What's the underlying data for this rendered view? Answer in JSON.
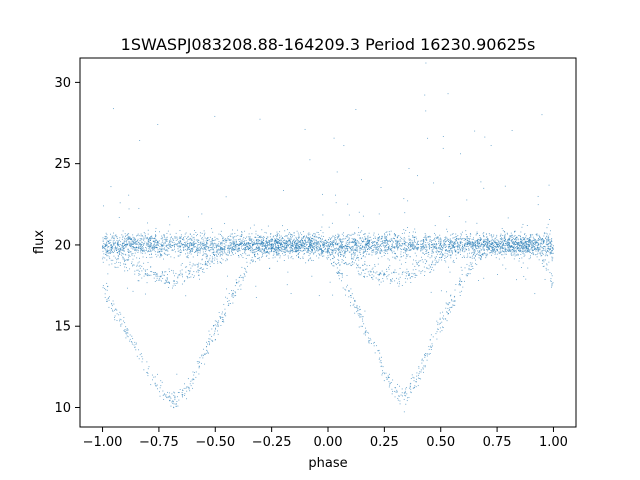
{
  "chart_data": {
    "type": "scatter",
    "title": "1SWASPJ083208.88-164209.3 Period 16230.90625s",
    "xlabel": "phase",
    "ylabel": "flux",
    "xlim": [
      -1.1,
      1.1
    ],
    "ylim": [
      8.8,
      31.5
    ],
    "x_ticks": [
      -1.0,
      -0.75,
      -0.5,
      -0.25,
      0.0,
      0.25,
      0.5,
      0.75,
      1.0
    ],
    "x_tick_labels": [
      "−1.00",
      "−0.75",
      "−0.50",
      "−0.25",
      "0.00",
      "0.25",
      "0.50",
      "0.75",
      "1.00"
    ],
    "y_ticks": [
      10,
      15,
      20,
      25,
      30
    ],
    "y_tick_labels": [
      "10",
      "15",
      "20",
      "25",
      "30"
    ],
    "grid": false,
    "legend": "none",
    "series": [
      {
        "color": "#1f77b4",
        "description_points": "folded light curve, dense sampling",
        "x": [
          -1.0,
          -0.95,
          -0.9,
          -0.85,
          -0.8,
          -0.75,
          -0.7,
          -0.68,
          -0.65,
          -0.6,
          -0.55,
          -0.5,
          -0.45,
          -0.4,
          -0.35,
          -0.3,
          -0.25,
          -0.2,
          -0.15,
          -0.1,
          -0.05,
          0.0,
          0.05,
          0.1,
          0.15,
          0.2,
          0.25,
          0.3,
          0.32,
          0.35,
          0.4,
          0.45,
          0.5,
          0.55,
          0.6,
          0.65,
          0.7,
          0.75,
          0.8,
          0.85,
          0.9,
          0.95,
          1.0
        ],
        "y_primary": [
          17.5,
          16.0,
          14.8,
          13.5,
          12.3,
          11.2,
          10.6,
          10.4,
          10.7,
          11.8,
          13.2,
          14.8,
          16.2,
          17.6,
          18.9,
          19.7,
          20.0,
          20.0,
          20.0,
          20.0,
          20.0,
          19.6,
          18.3,
          16.9,
          15.4,
          13.9,
          12.2,
          10.9,
          10.4,
          10.8,
          12.0,
          13.6,
          15.2,
          16.6,
          18.0,
          19.2,
          19.8,
          20.0,
          20.0,
          20.0,
          20.0,
          19.2,
          17.6
        ],
        "y_secondary": [
          19.8,
          19.2,
          18.9,
          18.5,
          18.3,
          18.1,
          18.0,
          18.0,
          18.1,
          18.4,
          18.8,
          19.3,
          19.7,
          20.0,
          20.0,
          20.0,
          20.0,
          20.0,
          20.0,
          20.0,
          20.0,
          19.8,
          19.4,
          19.0,
          18.6,
          18.3,
          18.1,
          18.0,
          18.0,
          18.1,
          18.4,
          18.8,
          19.3,
          19.7,
          20.0,
          20.0,
          20.0,
          20.0,
          20.0,
          20.0,
          20.0,
          19.8,
          19.6
        ],
        "baseline": 20.0
      }
    ]
  }
}
